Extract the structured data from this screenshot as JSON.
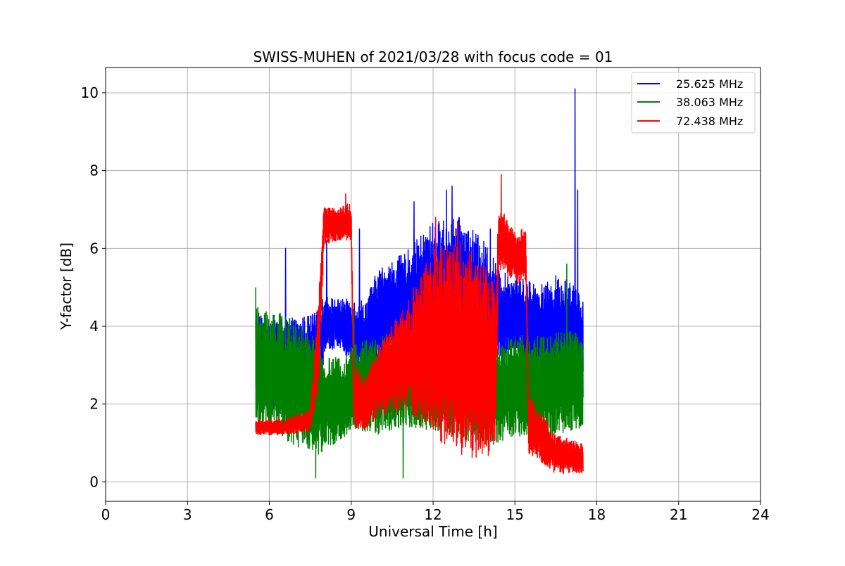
{
  "chart_data": {
    "type": "line",
    "title": "SWISS-MUHEN of 2021/03/28 with focus code = 01",
    "xlabel": "Universal Time [h]",
    "ylabel": "Y-factor [dB]",
    "xlim": [
      0,
      24
    ],
    "ylim": [
      -0.5,
      10.65
    ],
    "xticks": [
      0,
      3,
      6,
      9,
      12,
      15,
      18,
      21,
      24
    ],
    "yticks": [
      0,
      2,
      4,
      6,
      8,
      10
    ],
    "grid": true,
    "legend_position": "top-right",
    "series": [
      {
        "name": "25.625 MHz",
        "color": "#0000ff",
        "x_range": [
          5.5,
          17.5
        ],
        "profile": [
          [
            5.5,
            3.1,
            1.3
          ],
          [
            6.0,
            3.1,
            1.2
          ],
          [
            7.0,
            2.9,
            1.3
          ],
          [
            7.8,
            3.0,
            1.4
          ],
          [
            8.0,
            4.0,
            0.8
          ],
          [
            8.5,
            4.1,
            0.6
          ],
          [
            9.0,
            3.9,
            0.8
          ],
          [
            9.5,
            3.5,
            1.2
          ],
          [
            10.0,
            4.2,
            1.3
          ],
          [
            11.0,
            4.5,
            1.4
          ],
          [
            12.0,
            4.9,
            1.8
          ],
          [
            13.0,
            5.0,
            1.8
          ],
          [
            14.0,
            4.5,
            1.6
          ],
          [
            14.5,
            4.2,
            1.2
          ],
          [
            15.0,
            4.3,
            1.0
          ],
          [
            16.0,
            3.8,
            1.3
          ],
          [
            17.0,
            4.0,
            1.3
          ],
          [
            17.5,
            3.5,
            1.2
          ]
        ],
        "spikes": [
          [
            17.2,
            10.1
          ],
          [
            17.3,
            7.5
          ],
          [
            12.7,
            7.6
          ],
          [
            12.5,
            7.5
          ],
          [
            11.3,
            7.2
          ],
          [
            9.3,
            6.5
          ],
          [
            8.1,
            6.2
          ],
          [
            6.6,
            6.0
          ],
          [
            14.1,
            6.5
          ],
          [
            16.5,
            5.3
          ]
        ]
      },
      {
        "name": "38.063 MHz",
        "color": "#008000",
        "x_range": [
          5.5,
          17.5
        ],
        "profile": [
          [
            5.5,
            3.0,
            1.5
          ],
          [
            6.0,
            2.9,
            1.6
          ],
          [
            7.0,
            2.5,
            1.6
          ],
          [
            7.8,
            2.2,
            1.5
          ],
          [
            8.0,
            2.0,
            1.2
          ],
          [
            8.5,
            2.1,
            1.1
          ],
          [
            9.0,
            2.4,
            1.1
          ],
          [
            9.5,
            2.5,
            1.2
          ],
          [
            10.0,
            2.5,
            1.3
          ],
          [
            11.0,
            2.6,
            1.2
          ],
          [
            12.0,
            2.6,
            1.3
          ],
          [
            13.0,
            2.3,
            1.2
          ],
          [
            14.0,
            2.1,
            1.2
          ],
          [
            14.5,
            2.3,
            1.3
          ],
          [
            15.0,
            2.5,
            1.3
          ],
          [
            16.0,
            2.4,
            1.4
          ],
          [
            17.0,
            2.6,
            1.3
          ],
          [
            17.5,
            2.6,
            1.2
          ]
        ],
        "spikes": [
          [
            5.5,
            5.0
          ],
          [
            7.7,
            0.1
          ],
          [
            9.1,
            4.4
          ],
          [
            10.9,
            0.1
          ],
          [
            16.9,
            5.6
          ]
        ]
      },
      {
        "name": "72.438 MHz",
        "color": "#ff0000",
        "x_range": [
          5.5,
          17.5
        ],
        "profile": [
          [
            5.5,
            1.4,
            0.2
          ],
          [
            6.5,
            1.4,
            0.2
          ],
          [
            7.5,
            1.6,
            0.3
          ],
          [
            7.8,
            3.5,
            1.2
          ],
          [
            8.0,
            6.6,
            0.5
          ],
          [
            8.5,
            6.6,
            0.4
          ],
          [
            9.0,
            6.7,
            0.5
          ],
          [
            9.1,
            2.2,
            0.9
          ],
          [
            9.5,
            2.0,
            0.7
          ],
          [
            10.0,
            2.6,
            0.9
          ],
          [
            11.0,
            3.2,
            1.4
          ],
          [
            12.0,
            3.6,
            2.4
          ],
          [
            13.0,
            3.4,
            2.8
          ],
          [
            14.0,
            3.0,
            2.5
          ],
          [
            14.3,
            3.0,
            2.0
          ],
          [
            14.4,
            6.3,
            0.8
          ],
          [
            15.0,
            5.8,
            0.7
          ],
          [
            15.4,
            5.8,
            0.7
          ],
          [
            15.5,
            1.5,
            0.8
          ],
          [
            16.5,
            0.7,
            0.5
          ],
          [
            17.5,
            0.6,
            0.4
          ]
        ],
        "spikes": [
          [
            14.5,
            7.9
          ],
          [
            8.8,
            7.4
          ],
          [
            12.1,
            6.8
          ],
          [
            12.9,
            6.7
          ]
        ]
      }
    ]
  }
}
